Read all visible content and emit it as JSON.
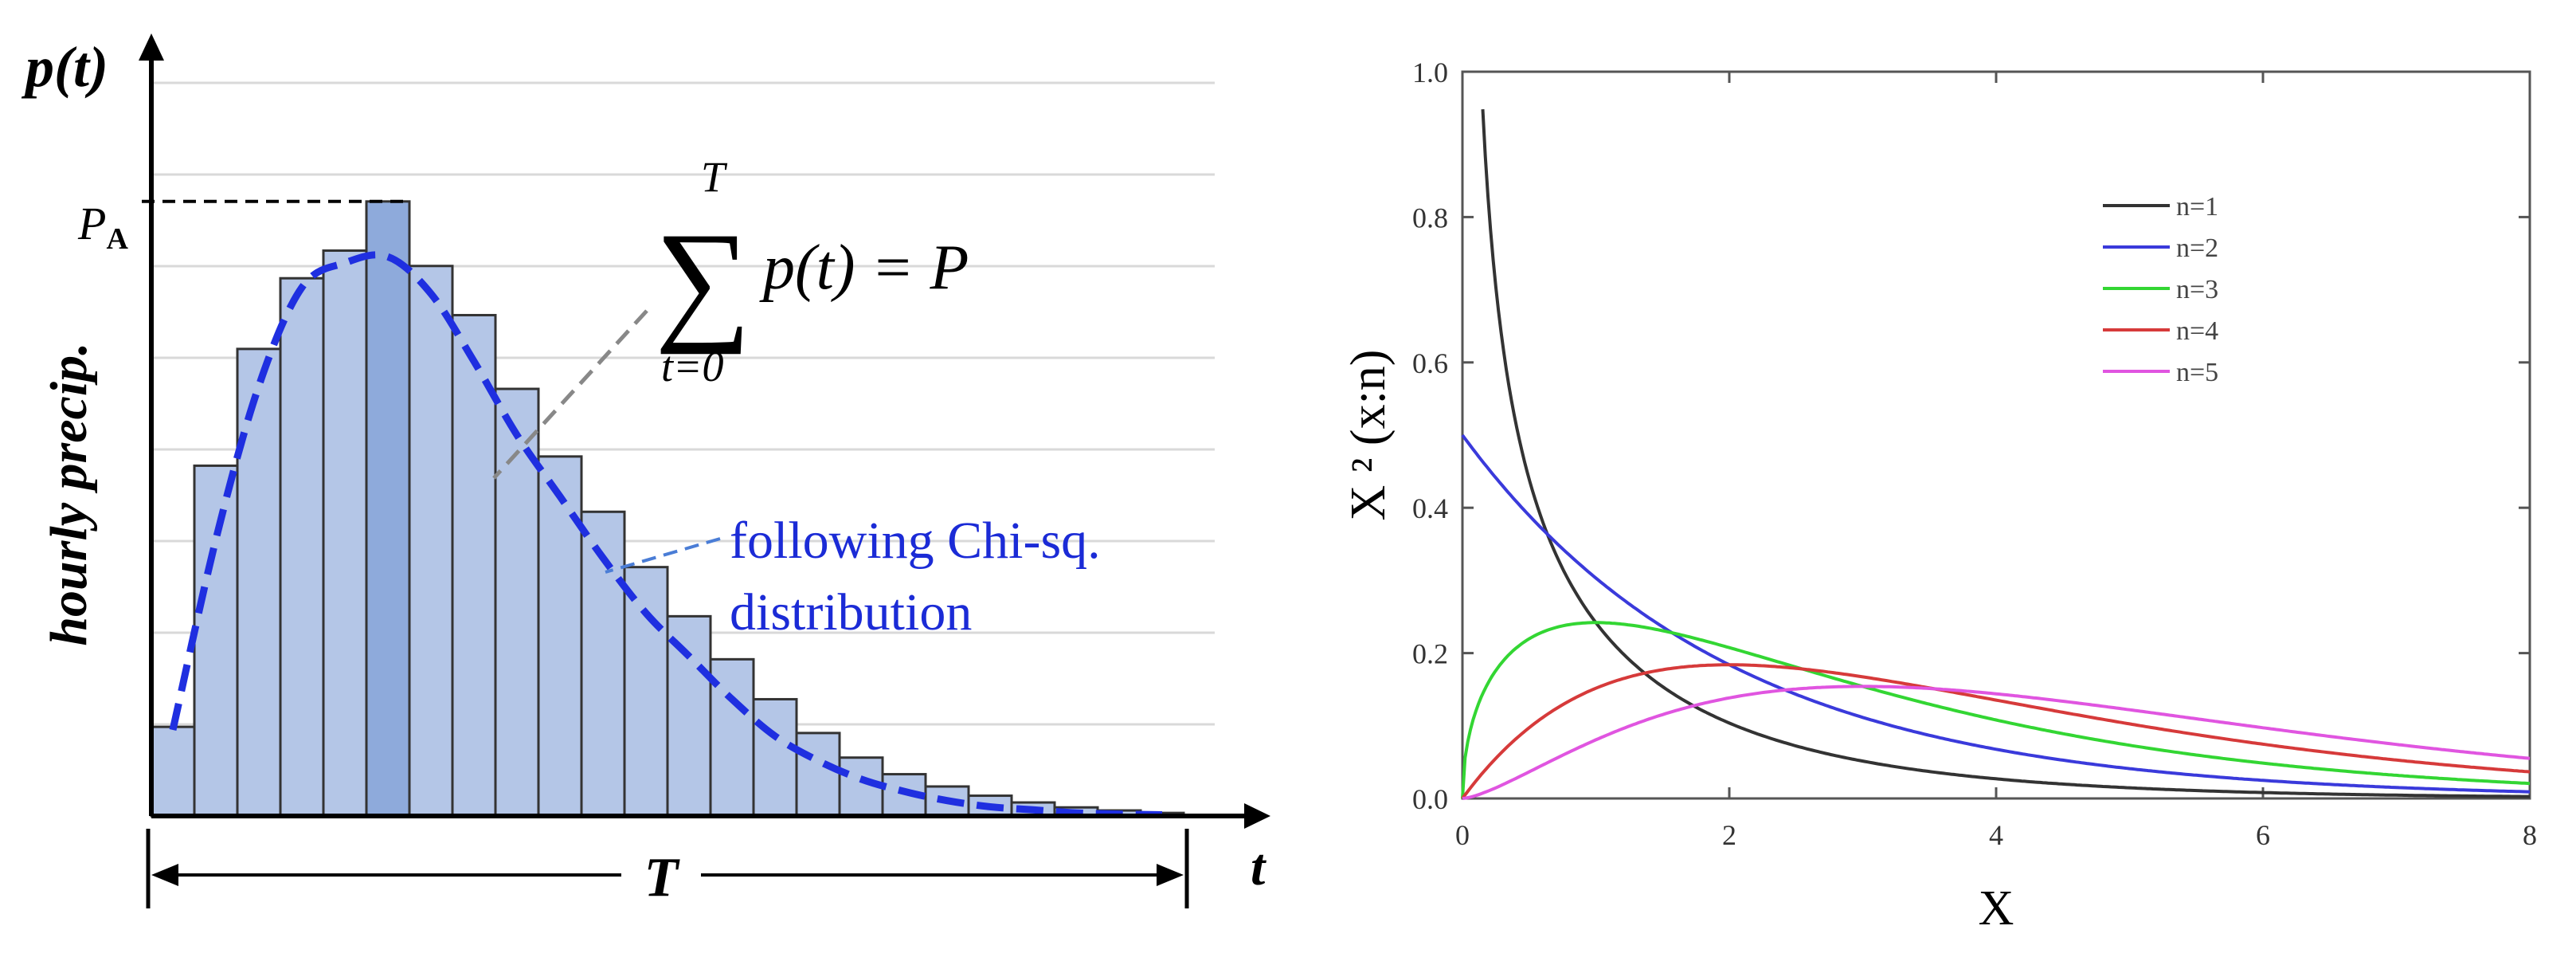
{
  "chart_data": [
    {
      "type": "bar",
      "title": "",
      "xlabel": "t",
      "ylabel": "hourly precip.",
      "y_axis_symbol": "p(t)",
      "peak_label": "P",
      "peak_label_subscript": "A",
      "duration_label": "T",
      "equation": {
        "upper": "T",
        "sigma": "∑",
        "body": "p(t) = P",
        "lower": "t=0"
      },
      "curve_annotation": [
        "following Chi-sq.",
        "distribution"
      ],
      "highlighted_bar_index": 5,
      "values": [
        0.145,
        0.57,
        0.76,
        0.875,
        0.92,
        1.0,
        0.895,
        0.815,
        0.695,
        0.585,
        0.495,
        0.405,
        0.325,
        0.255,
        0.19,
        0.135,
        0.095,
        0.068,
        0.048,
        0.033,
        0.022,
        0.014,
        0.009,
        0.005
      ],
      "fit_curve_points": [
        [
          0.5,
          0.14
        ],
        [
          1.5,
          0.45
        ],
        [
          2.5,
          0.7
        ],
        [
          3.5,
          0.86
        ],
        [
          4.5,
          0.9
        ],
        [
          5.5,
          0.91
        ],
        [
          6.5,
          0.85
        ],
        [
          7.5,
          0.74
        ],
        [
          8.5,
          0.62
        ],
        [
          9.5,
          0.52
        ],
        [
          10.5,
          0.42
        ],
        [
          11.5,
          0.33
        ],
        [
          12.5,
          0.26
        ],
        [
          13.5,
          0.19
        ],
        [
          14.5,
          0.13
        ],
        [
          15.5,
          0.09
        ],
        [
          16.5,
          0.06
        ],
        [
          17.5,
          0.04
        ],
        [
          18.5,
          0.025
        ],
        [
          19.5,
          0.015
        ],
        [
          20.5,
          0.01
        ],
        [
          21.5,
          0.005
        ],
        [
          22.5,
          0.003
        ],
        [
          23.5,
          0.002
        ]
      ],
      "ylim": [
        0,
        1.25
      ],
      "grid": true
    },
    {
      "type": "line",
      "title": "",
      "xlabel": "X",
      "ylabel": "X ² (x:n)",
      "xlim": [
        0,
        8
      ],
      "ylim": [
        0,
        1.0
      ],
      "xticks": [
        "0",
        "2",
        "4",
        "6",
        "8"
      ],
      "yticks": [
        "0.0",
        "0.2",
        "0.4",
        "0.6",
        "0.8",
        "1.0"
      ],
      "legend_position": "top-right",
      "series": [
        {
          "name": "n=1",
          "k": 1,
          "color": "#333333"
        },
        {
          "name": "n=2",
          "k": 2,
          "color": "#3a3adb"
        },
        {
          "name": "n=3",
          "k": 3,
          "color": "#33d633"
        },
        {
          "name": "n=4",
          "k": 4,
          "color": "#d63a3a"
        },
        {
          "name": "n=5",
          "k": 5,
          "color": "#e055e0"
        }
      ]
    }
  ],
  "colors": {
    "bar_fill": "#b4c6e7",
    "bar_highlight": "#8eaadb",
    "bar_stroke": "#333333",
    "fit_curve": "#1f2fe0",
    "annotation_text": "#1b2bd6",
    "grid": "#d9d9d9"
  }
}
